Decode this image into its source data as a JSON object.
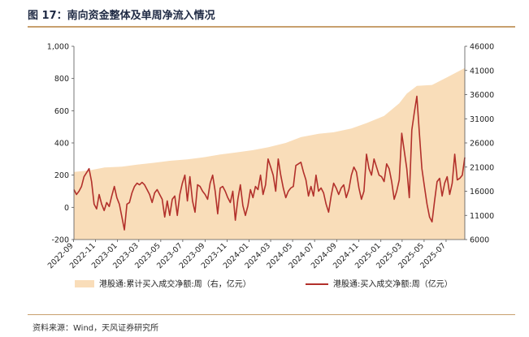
{
  "title": "图 17：南向资金整体及单周净流入情况",
  "source": "资料来源：Wind，天风证券研究所",
  "colors": {
    "area": "#f9ddb9",
    "line": "#b2302b",
    "rule": "#c8a06e"
  },
  "chart_data": {
    "type": "line",
    "xlabel": "",
    "ylabel": "",
    "x_ticks": [
      "2022-09",
      "2022-11",
      "2023-01",
      "2023-03",
      "2023-05",
      "2023-07",
      "2023-09",
      "2023-11",
      "2024-01",
      "2024-03",
      "2024-05",
      "2024-07",
      "2024-09",
      "2024-11",
      "2025-01",
      "2025-03",
      "2025-05",
      "2025-07"
    ],
    "x_range": [
      "2022-09-02",
      "2025-08-22"
    ],
    "y_left": {
      "ylim": [
        -200,
        1000
      ],
      "ticks": [
        "1,000",
        "800",
        "600",
        "400",
        "200",
        "0",
        "-200"
      ]
    },
    "y_right": {
      "ylim": [
        6000,
        46000
      ],
      "ticks": [
        "46000",
        "41000",
        "36000",
        "31000",
        "26000",
        "21000",
        "16000",
        "11000",
        "6000"
      ]
    },
    "series": [
      {
        "name": "港股通:累计买入成交净额:周（右，亿元）",
        "kind": "area",
        "axis": "right",
        "points": [
          [
            "2022-09-02",
            20000
          ],
          [
            "2022-10-14",
            20300
          ],
          [
            "2022-11-25",
            20900
          ],
          [
            "2023-01-13",
            21100
          ],
          [
            "2023-02-24",
            21500
          ],
          [
            "2023-04-14",
            21900
          ],
          [
            "2023-05-26",
            22300
          ],
          [
            "2023-07-14",
            22600
          ],
          [
            "2023-08-25",
            23000
          ],
          [
            "2023-10-13",
            23600
          ],
          [
            "2023-11-24",
            24000
          ],
          [
            "2024-01-12",
            24500
          ],
          [
            "2024-02-23",
            25100
          ],
          [
            "2024-04-12",
            26000
          ],
          [
            "2024-05-24",
            27200
          ],
          [
            "2024-07-12",
            27900
          ],
          [
            "2024-08-23",
            28200
          ],
          [
            "2024-10-11",
            29000
          ],
          [
            "2024-11-22",
            30100
          ],
          [
            "2025-01-10",
            31600
          ],
          [
            "2025-02-21",
            34200
          ],
          [
            "2025-03-14",
            36200
          ],
          [
            "2025-04-11",
            37800
          ],
          [
            "2025-05-23",
            38000
          ],
          [
            "2025-07-04",
            39600
          ],
          [
            "2025-08-22",
            41500
          ]
        ]
      },
      {
        "name": "港股通:买入成交净额:周（亿元）",
        "kind": "line",
        "axis": "left",
        "points": [
          [
            "2022-09-02",
            110
          ],
          [
            "2022-09-09",
            80
          ],
          [
            "2022-09-16",
            100
          ],
          [
            "2022-09-23",
            130
          ],
          [
            "2022-09-30",
            190
          ],
          [
            "2022-10-07",
            215
          ],
          [
            "2022-10-14",
            240
          ],
          [
            "2022-10-21",
            160
          ],
          [
            "2022-10-28",
            20
          ],
          [
            "2022-11-04",
            -10
          ],
          [
            "2022-11-11",
            80
          ],
          [
            "2022-11-18",
            20
          ],
          [
            "2022-11-25",
            -20
          ],
          [
            "2022-12-02",
            30
          ],
          [
            "2022-12-09",
            5
          ],
          [
            "2022-12-16",
            70
          ],
          [
            "2022-12-23",
            130
          ],
          [
            "2022-12-30",
            60
          ],
          [
            "2023-01-06",
            20
          ],
          [
            "2023-01-13",
            -60
          ],
          [
            "2023-01-20",
            -140
          ],
          [
            "2023-01-27",
            20
          ],
          [
            "2023-02-03",
            30
          ],
          [
            "2023-02-10",
            90
          ],
          [
            "2023-02-17",
            130
          ],
          [
            "2023-02-24",
            150
          ],
          [
            "2023-03-03",
            140
          ],
          [
            "2023-03-10",
            155
          ],
          [
            "2023-03-17",
            140
          ],
          [
            "2023-03-24",
            110
          ],
          [
            "2023-03-31",
            80
          ],
          [
            "2023-04-07",
            30
          ],
          [
            "2023-04-14",
            90
          ],
          [
            "2023-04-21",
            110
          ],
          [
            "2023-04-28",
            80
          ],
          [
            "2023-05-05",
            50
          ],
          [
            "2023-05-12",
            -60
          ],
          [
            "2023-05-19",
            40
          ],
          [
            "2023-05-26",
            -50
          ],
          [
            "2023-06-02",
            50
          ],
          [
            "2023-06-09",
            70
          ],
          [
            "2023-06-16",
            -50
          ],
          [
            "2023-06-23",
            80
          ],
          [
            "2023-06-30",
            150
          ],
          [
            "2023-07-07",
            200
          ],
          [
            "2023-07-14",
            40
          ],
          [
            "2023-07-21",
            190
          ],
          [
            "2023-07-28",
            40
          ],
          [
            "2023-08-04",
            -30
          ],
          [
            "2023-08-11",
            140
          ],
          [
            "2023-08-18",
            130
          ],
          [
            "2023-08-25",
            100
          ],
          [
            "2023-09-01",
            80
          ],
          [
            "2023-09-08",
            50
          ],
          [
            "2023-09-15",
            150
          ],
          [
            "2023-09-22",
            200
          ],
          [
            "2023-09-29",
            100
          ],
          [
            "2023-10-06",
            -40
          ],
          [
            "2023-10-13",
            120
          ],
          [
            "2023-10-20",
            130
          ],
          [
            "2023-10-27",
            100
          ],
          [
            "2023-11-03",
            60
          ],
          [
            "2023-11-10",
            30
          ],
          [
            "2023-11-17",
            100
          ],
          [
            "2023-11-24",
            -80
          ],
          [
            "2023-12-01",
            50
          ],
          [
            "2023-12-08",
            140
          ],
          [
            "2023-12-15",
            10
          ],
          [
            "2023-12-22",
            -50
          ],
          [
            "2023-12-29",
            10
          ],
          [
            "2024-01-05",
            110
          ],
          [
            "2024-01-12",
            60
          ],
          [
            "2024-01-19",
            130
          ],
          [
            "2024-01-26",
            110
          ],
          [
            "2024-02-02",
            200
          ],
          [
            "2024-02-09",
            80
          ],
          [
            "2024-02-16",
            140
          ],
          [
            "2024-02-23",
            300
          ],
          [
            "2024-03-01",
            250
          ],
          [
            "2024-03-08",
            200
          ],
          [
            "2024-03-15",
            100
          ],
          [
            "2024-03-22",
            300
          ],
          [
            "2024-03-29",
            200
          ],
          [
            "2024-04-05",
            120
          ],
          [
            "2024-04-12",
            60
          ],
          [
            "2024-04-19",
            100
          ],
          [
            "2024-04-26",
            120
          ],
          [
            "2024-05-03",
            130
          ],
          [
            "2024-05-10",
            260
          ],
          [
            "2024-05-17",
            270
          ],
          [
            "2024-05-24",
            280
          ],
          [
            "2024-05-31",
            220
          ],
          [
            "2024-06-07",
            170
          ],
          [
            "2024-06-14",
            70
          ],
          [
            "2024-06-21",
            130
          ],
          [
            "2024-06-28",
            70
          ],
          [
            "2024-07-05",
            200
          ],
          [
            "2024-07-12",
            100
          ],
          [
            "2024-07-19",
            120
          ],
          [
            "2024-07-26",
            90
          ],
          [
            "2024-08-02",
            20
          ],
          [
            "2024-08-09",
            -30
          ],
          [
            "2024-08-16",
            70
          ],
          [
            "2024-08-23",
            150
          ],
          [
            "2024-08-30",
            120
          ],
          [
            "2024-09-06",
            80
          ],
          [
            "2024-09-13",
            120
          ],
          [
            "2024-09-20",
            140
          ],
          [
            "2024-09-27",
            60
          ],
          [
            "2024-10-04",
            110
          ],
          [
            "2024-10-11",
            200
          ],
          [
            "2024-10-18",
            250
          ],
          [
            "2024-10-25",
            220
          ],
          [
            "2024-11-01",
            120
          ],
          [
            "2024-11-08",
            50
          ],
          [
            "2024-11-15",
            100
          ],
          [
            "2024-11-22",
            330
          ],
          [
            "2024-11-29",
            240
          ],
          [
            "2024-12-06",
            200
          ],
          [
            "2024-12-13",
            300
          ],
          [
            "2024-12-20",
            250
          ],
          [
            "2024-12-27",
            200
          ],
          [
            "2025-01-03",
            190
          ],
          [
            "2025-01-10",
            160
          ],
          [
            "2025-01-17",
            270
          ],
          [
            "2025-01-24",
            240
          ],
          [
            "2025-01-31",
            160
          ],
          [
            "2025-02-07",
            50
          ],
          [
            "2025-02-14",
            100
          ],
          [
            "2025-02-21",
            170
          ],
          [
            "2025-02-28",
            460
          ],
          [
            "2025-03-07",
            350
          ],
          [
            "2025-03-14",
            240
          ],
          [
            "2025-03-21",
            60
          ],
          [
            "2025-03-28",
            480
          ],
          [
            "2025-04-04",
            590
          ],
          [
            "2025-04-11",
            690
          ],
          [
            "2025-04-18",
            460
          ],
          [
            "2025-04-25",
            240
          ],
          [
            "2025-05-02",
            130
          ],
          [
            "2025-05-09",
            20
          ],
          [
            "2025-05-16",
            -60
          ],
          [
            "2025-05-23",
            -90
          ],
          [
            "2025-05-30",
            40
          ],
          [
            "2025-06-06",
            160
          ],
          [
            "2025-06-13",
            180
          ],
          [
            "2025-06-20",
            70
          ],
          [
            "2025-06-27",
            150
          ],
          [
            "2025-07-04",
            190
          ],
          [
            "2025-07-11",
            80
          ],
          [
            "2025-07-18",
            150
          ],
          [
            "2025-07-25",
            330
          ],
          [
            "2025-08-01",
            170
          ],
          [
            "2025-08-08",
            180
          ],
          [
            "2025-08-15",
            200
          ],
          [
            "2025-08-22",
            310
          ]
        ]
      }
    ]
  }
}
